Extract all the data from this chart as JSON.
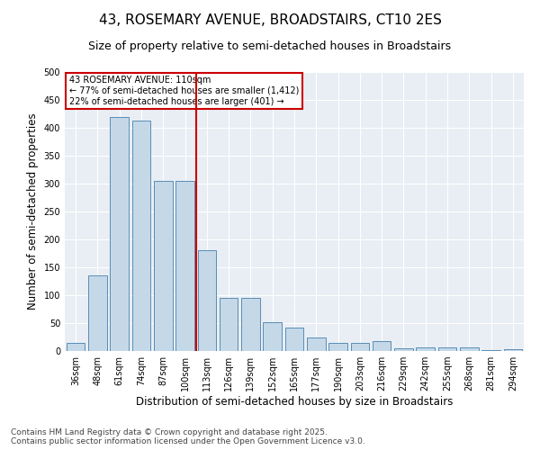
{
  "title1": "43, ROSEMARY AVENUE, BROADSTAIRS, CT10 2ES",
  "title2": "Size of property relative to semi-detached houses in Broadstairs",
  "xlabel": "Distribution of semi-detached houses by size in Broadstairs",
  "ylabel": "Number of semi-detached properties",
  "categories": [
    "36sqm",
    "48sqm",
    "61sqm",
    "74sqm",
    "87sqm",
    "100sqm",
    "113sqm",
    "126sqm",
    "139sqm",
    "152sqm",
    "165sqm",
    "177sqm",
    "190sqm",
    "203sqm",
    "216sqm",
    "229sqm",
    "242sqm",
    "255sqm",
    "268sqm",
    "281sqm",
    "294sqm"
  ],
  "values": [
    14,
    135,
    420,
    413,
    305,
    305,
    180,
    95,
    95,
    52,
    42,
    25,
    15,
    15,
    18,
    5,
    6,
    6,
    7,
    2,
    3
  ],
  "bar_color": "#c5d8e8",
  "bar_edge_color": "#5a8db5",
  "vline_x_index": 6,
  "vline_color": "#cc0000",
  "annotation_text": "43 ROSEMARY AVENUE: 110sqm\n← 77% of semi-detached houses are smaller (1,412)\n22% of semi-detached houses are larger (401) →",
  "annotation_box_color": "#cc0000",
  "ylim": [
    0,
    500
  ],
  "yticks": [
    0,
    50,
    100,
    150,
    200,
    250,
    300,
    350,
    400,
    450,
    500
  ],
  "background_color": "#e8eef4",
  "footnote": "Contains HM Land Registry data © Crown copyright and database right 2025.\nContains public sector information licensed under the Open Government Licence v3.0.",
  "title_fontsize": 11,
  "subtitle_fontsize": 9,
  "axis_label_fontsize": 8.5,
  "tick_fontsize": 7,
  "footnote_fontsize": 6.5
}
